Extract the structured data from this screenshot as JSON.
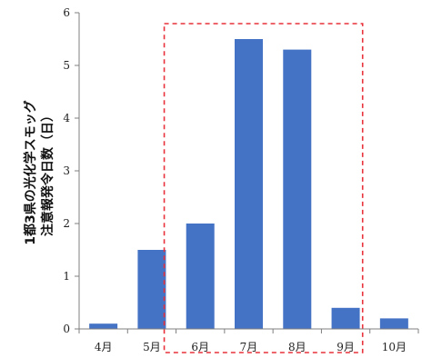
{
  "chart_data": {
    "type": "bar",
    "title": "",
    "xlabel": "",
    "ylabel_lines": [
      "1都3県の光化学スモッグ",
      "注意報発令日数（日）"
    ],
    "categories": [
      "4月",
      "5月",
      "6月",
      "7月",
      "8月",
      "9月",
      "10月"
    ],
    "values": [
      0.1,
      1.5,
      2.0,
      5.5,
      5.3,
      0.4,
      0.2
    ],
    "ylim": [
      0,
      6
    ],
    "yticks": [
      0,
      1,
      2,
      3,
      4,
      5,
      6
    ],
    "grid": false,
    "legend": "none",
    "bar_color": "#4472c4",
    "highlight": {
      "categories": [
        "6月",
        "7月",
        "8月",
        "9月"
      ],
      "style": "dashed",
      "color": "#e8313a"
    }
  }
}
